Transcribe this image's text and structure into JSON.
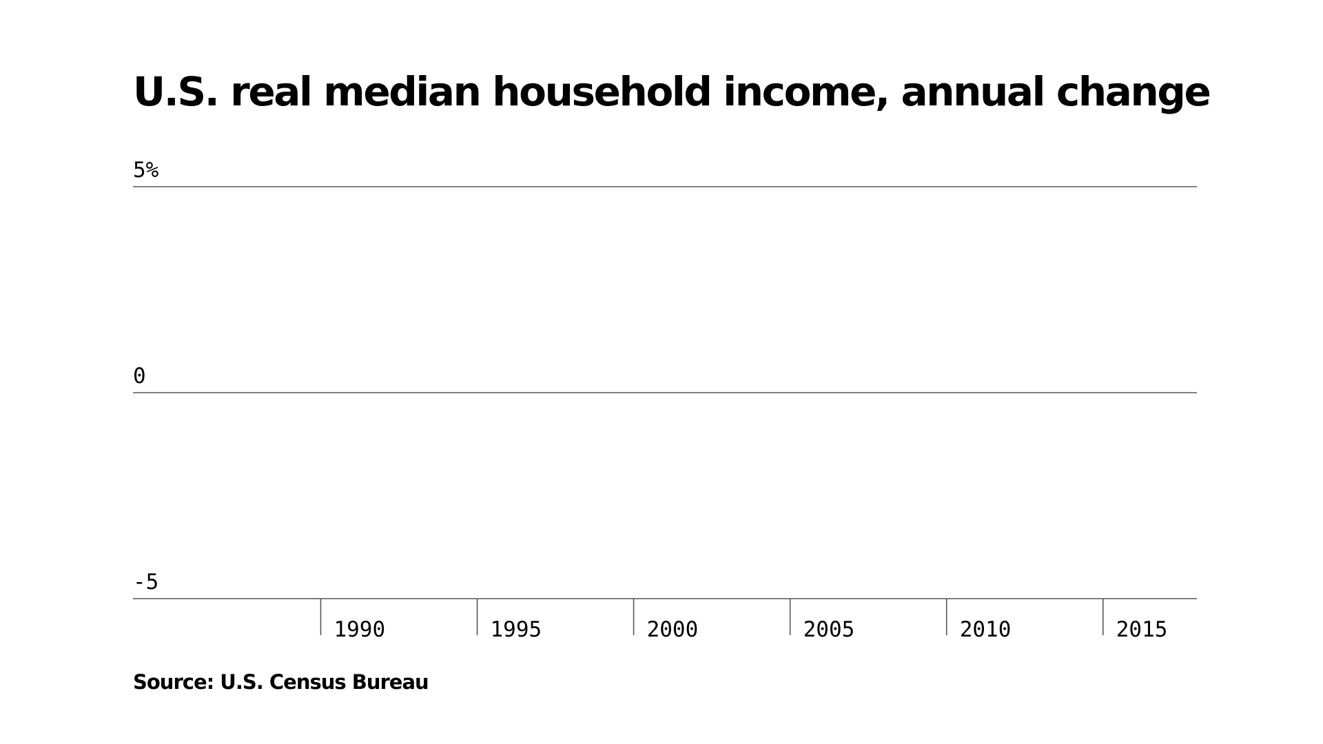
{
  "chart_data": {
    "type": "bar",
    "title": "U.S. real median household income, annual change",
    "xlabel": "",
    "ylabel": "",
    "ylim": [
      -5,
      5
    ],
    "xlim": [
      1984,
      2018
    ],
    "y_ticks": [
      {
        "value": 5,
        "label": "5%"
      },
      {
        "value": 0,
        "label": "0"
      },
      {
        "value": -5,
        "label": "-5"
      }
    ],
    "x_ticks": [
      {
        "value": 1990,
        "label": "1990"
      },
      {
        "value": 1995,
        "label": "1995"
      },
      {
        "value": 2000,
        "label": "2000"
      },
      {
        "value": 2005,
        "label": "2005"
      },
      {
        "value": 2010,
        "label": "2010"
      },
      {
        "value": 2015,
        "label": "2015"
      }
    ],
    "series": [],
    "grid": true,
    "colors": {
      "text": "#000000",
      "grid": "#555555",
      "background": "#ffffff"
    }
  },
  "source": "Source: U.S. Census Bureau"
}
